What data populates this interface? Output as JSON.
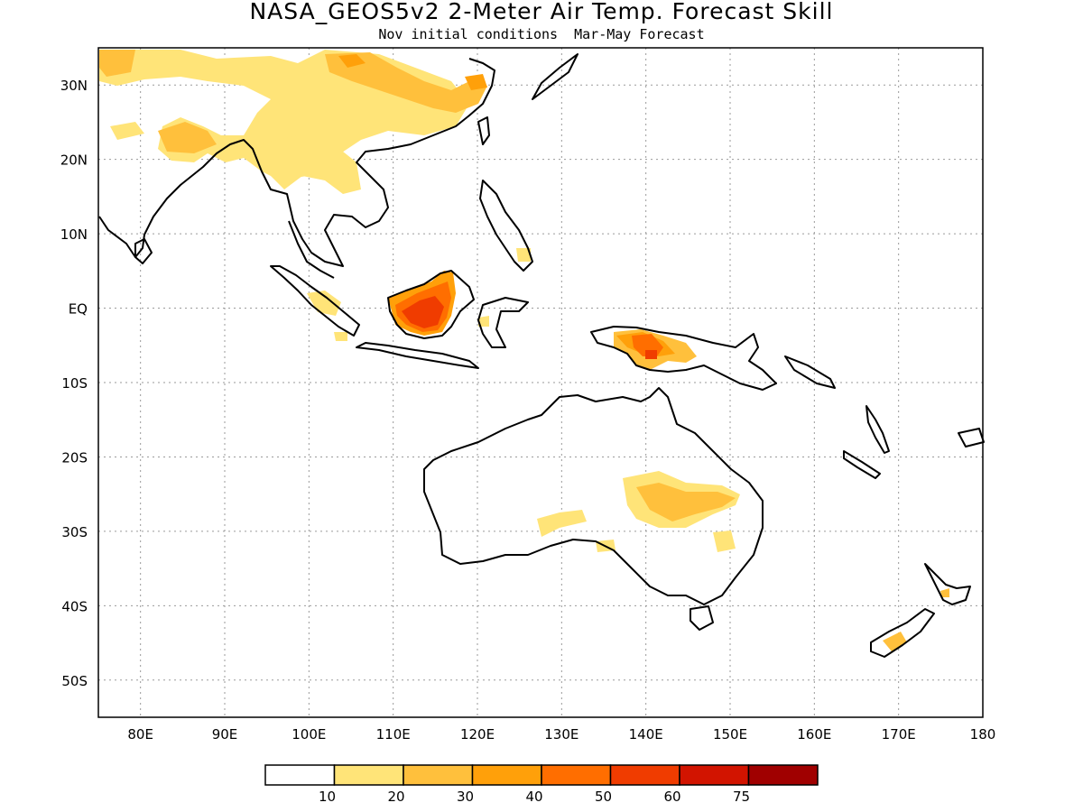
{
  "title": "NASA_GEOS5v2 2-Meter Air Temp. Forecast Skill",
  "subtitle": "Nov initial conditions  Mar-May Forecast",
  "map": {
    "lon_range": [
      75,
      180
    ],
    "lat_range": [
      -55,
      35
    ],
    "grid": "dotted",
    "lon_ticks": [
      "80E",
      "90E",
      "100E",
      "110E",
      "120E",
      "130E",
      "140E",
      "150E",
      "160E",
      "170E",
      "180"
    ],
    "lat_ticks": [
      "30N",
      "20N",
      "10N",
      "EQ",
      "10S",
      "20S",
      "30S",
      "40S",
      "50S"
    ]
  },
  "colorbar": {
    "labels": [
      "10",
      "20",
      "30",
      "40",
      "50",
      "60",
      "75"
    ],
    "colors": [
      "#ffffff",
      "#ffe478",
      "#ffc03c",
      "#ffa00a",
      "#ff6e00",
      "#f03c00",
      "#d21400",
      "#a00000"
    ]
  },
  "chart_data": {
    "type": "heatmap",
    "variable": "2-Meter Air Temp. Forecast Skill",
    "levels": [
      10,
      20,
      30,
      40,
      50,
      60,
      75
    ],
    "regions_shaded": [
      {
        "region": "Borneo (Kalimantan)",
        "level": "40-60"
      },
      {
        "region": "New Guinea",
        "level": "20-50"
      },
      {
        "region": "Eastern Australia interior",
        "level": "10-30"
      },
      {
        "region": "Southeast China / Indochina",
        "level": "10-30"
      },
      {
        "region": "Northern India",
        "level": "10-30"
      },
      {
        "region": "New Zealand South Island",
        "level": "10-30"
      }
    ]
  }
}
